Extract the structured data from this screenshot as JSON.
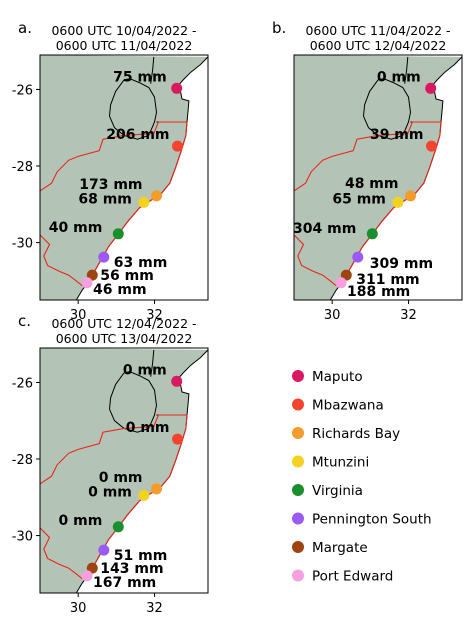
{
  "stations": [
    {
      "id": "maputo",
      "name": "Maputo",
      "color": "#d81b60",
      "lon": 32.58,
      "lat": -25.97
    },
    {
      "id": "mbazwana",
      "name": "Mbazwana",
      "color": "#f4442e",
      "lon": 32.6,
      "lat": -27.48
    },
    {
      "id": "richards-bay",
      "name": "Richards Bay",
      "color": "#f39c2b",
      "lon": 32.05,
      "lat": -28.78
    },
    {
      "id": "mtunzini",
      "name": "Mtunzini",
      "color": "#f4d21f",
      "lon": 31.72,
      "lat": -28.95
    },
    {
      "id": "virginia",
      "name": "Virginia",
      "color": "#1a8f2e",
      "lon": 31.05,
      "lat": -29.77
    },
    {
      "id": "pennington-south",
      "name": "Pennington South",
      "color": "#9b59f6",
      "lon": 30.67,
      "lat": -30.38
    },
    {
      "id": "margate",
      "name": "Margate",
      "color": "#a0440f",
      "lon": 30.37,
      "lat": -30.85
    },
    {
      "id": "port-edward",
      "name": "Port Edward",
      "color": "#f7a0e0",
      "lon": 30.23,
      "lat": -31.05
    }
  ],
  "panels": [
    {
      "id": "a",
      "label": "a.",
      "title_line1": "0600 UTC 10/04/2022 -",
      "title_line2": "0600 UTC 11/04/2022",
      "values": [
        "75 mm",
        "206 mm",
        "173 mm",
        "68 mm",
        "40 mm",
        "63 mm",
        "56 mm",
        "46 mm"
      ]
    },
    {
      "id": "b",
      "label": "b.",
      "title_line1": "0600 UTC 11/04/2022 -",
      "title_line2": "0600 UTC 12/04/2022",
      "values": [
        "0 mm",
        "39 mm",
        "48 mm",
        "65 mm",
        "304 mm",
        "309 mm",
        "311 mm",
        "188 mm"
      ]
    },
    {
      "id": "c",
      "label": "c.",
      "title_line1": "0600 UTC 12/04/2022 -",
      "title_line2": "0600 UTC 13/04/2022",
      "values": [
        "0 mm",
        "0 mm",
        "0 mm",
        "0 mm",
        "0 mm",
        "51 mm",
        "143 mm",
        "167 mm"
      ]
    }
  ],
  "axes": {
    "lon_ticks": [
      "30",
      "32"
    ],
    "lat_ticks": [
      "-26",
      "-28",
      "-30"
    ],
    "lon_range": [
      29.0,
      33.4
    ],
    "lat_range": [
      -31.5,
      -25.1
    ]
  },
  "colors": {
    "land": "#b3c4b6",
    "ocean": "#ffffff",
    "boundary": "#e8261a",
    "borders": "#000000"
  }
}
